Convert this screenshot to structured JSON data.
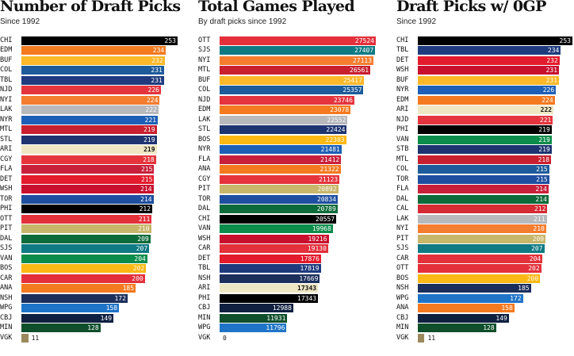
{
  "team_colors": {
    "CHI": "#000000",
    "EDM": "#f47a20",
    "BUF": "#fbb829",
    "COL": "#1d5b9a",
    "TBL": "#1f3b7e",
    "NJD": "#e4353e",
    "NYI": "#f47d30",
    "LAK": "#b8b9bd",
    "NYR": "#1d5fb6",
    "MTL": "#c8202f",
    "STL": "#1d3471",
    "ARI": "#efe7c4",
    "CGY": "#e5343c",
    "FLA": "#c8203a",
    "DET": "#e31b2c",
    "WSH": "#c8102e",
    "TOR": "#1e4ea0",
    "PHI": "#000000",
    "OTT": "#e3303b",
    "PIT": "#c8b66a",
    "DAL": "#0c6b3a",
    "SJS": "#0f7a84",
    "VAN": "#0b8c4a",
    "BOS": "#fcb814",
    "CAR": "#e3303b",
    "ANA": "#f47a20",
    "NSH": "#1c2f5c",
    "WPG": "#1f74c8",
    "CBJ": "#0f2040",
    "MIN": "#0f4f2b",
    "VGK": "#9c8a5e",
    "STB": "#1d3471",
    "CAL": "#d62a34"
  },
  "chart_data": [
    {
      "type": "bar",
      "title": "Number of Draft Picks",
      "subtitle": "Since 1992",
      "xlim": [
        0,
        253
      ],
      "categories": [
        "CHI",
        "EDM",
        "BUF",
        "COL",
        "TBL",
        "NJD",
        "NYI",
        "LAK",
        "NYR",
        "MTL",
        "STL",
        "ARI",
        "CGY",
        "FLA",
        "DET",
        "WSH",
        "TOR",
        "PHI",
        "OTT",
        "PIT",
        "DAL",
        "SJS",
        "VAN",
        "BOS",
        "CAR",
        "ANA",
        "NSH",
        "WPG",
        "CBJ",
        "MIN",
        "VGK"
      ],
      "values": [
        253,
        234,
        232,
        231,
        231,
        226,
        224,
        222,
        221,
        219,
        219,
        219,
        218,
        215,
        215,
        214,
        214,
        212,
        211,
        210,
        209,
        207,
        204,
        202,
        200,
        185,
        172,
        158,
        149,
        128,
        11
      ]
    },
    {
      "type": "bar",
      "title": "Total Games Played",
      "subtitle": "By draft picks since 1992",
      "xlim": [
        0,
        27524
      ],
      "categories": [
        "OTT",
        "SJS",
        "NYI",
        "MTL",
        "BUF",
        "COL",
        "NJD",
        "EDM",
        "LAK",
        "STL",
        "BOS",
        "NYR",
        "FLA",
        "ANA",
        "CGY",
        "PIT",
        "TOR",
        "DAL",
        "CHI",
        "VAN",
        "WSH",
        "CAR",
        "DET",
        "TBL",
        "NSH",
        "ARI",
        "PHI",
        "CBJ",
        "MIN",
        "WPG",
        "VGK"
      ],
      "values": [
        27524,
        27407,
        27113,
        26561,
        25417,
        25357,
        23746,
        23078,
        22552,
        22424,
        22303,
        21481,
        21412,
        21322,
        21123,
        20892,
        20834,
        20789,
        20557,
        19968,
        19216,
        19130,
        17876,
        17819,
        17669,
        17343,
        17343,
        12988,
        11931,
        11796,
        0
      ]
    },
    {
      "type": "bar",
      "title": "Draft Picks w/ 0GP",
      "subtitle": "Since 1992",
      "xlim": [
        0,
        253
      ],
      "categories": [
        "CHI",
        "TBL",
        "DET",
        "WSH",
        "BUF",
        "NYR",
        "EDM",
        "ARI",
        "NJD",
        "PHI",
        "VAN",
        "STB",
        "MTL",
        "COL",
        "TOR",
        "FLA",
        "DAL",
        "CAL",
        "LAK",
        "NYI",
        "PIT",
        "SJS",
        "CAR",
        "OTT",
        "BOS",
        "NSH",
        "WPG",
        "ANA",
        "CBJ",
        "MIN",
        "VGK"
      ],
      "values": [
        253,
        234,
        232,
        231,
        231,
        226,
        224,
        222,
        221,
        219,
        219,
        219,
        218,
        215,
        215,
        214,
        214,
        212,
        211,
        210,
        209,
        207,
        204,
        202,
        200,
        185,
        172,
        158,
        149,
        128,
        11
      ]
    }
  ]
}
